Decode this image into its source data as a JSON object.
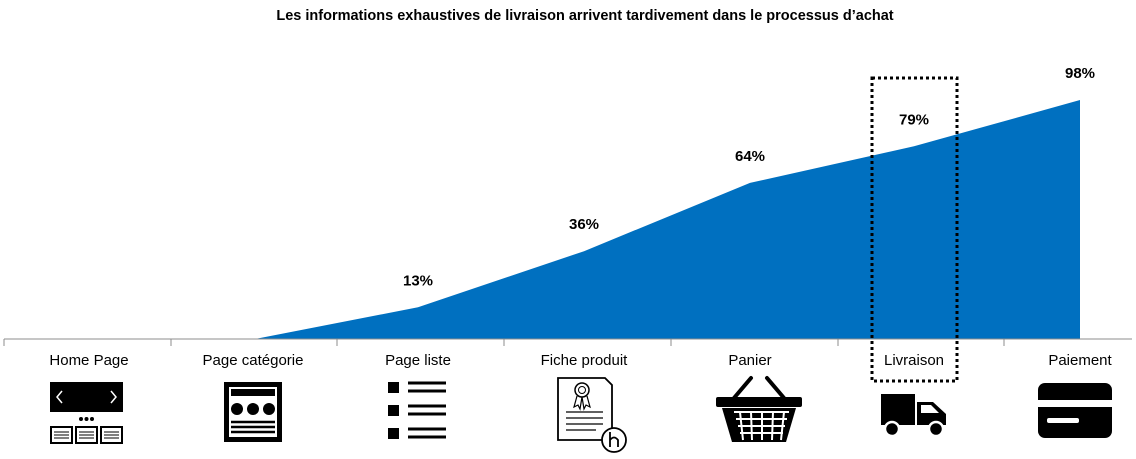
{
  "chart_data": {
    "type": "area",
    "title": "Les informations exhaustives de livraison arrivent tardivement dans le processus d’achat",
    "categories": [
      "Home Page",
      "Page catégorie",
      "Page liste",
      "Fiche produit",
      "Panier",
      "Livraison",
      "Paiement"
    ],
    "values": [
      0,
      0,
      13,
      36,
      64,
      79,
      98
    ],
    "value_labels": [
      "",
      "",
      "13%",
      "36%",
      "64%",
      "79%",
      "98%"
    ],
    "ylim": [
      0,
      100
    ],
    "grid": false,
    "highlighted_category": "Livraison",
    "area_color": "#0070C0"
  },
  "icons": [
    "browser-homepage-icon",
    "category-page-icon",
    "list-icon",
    "product-sheet-icon",
    "shopping-basket-icon",
    "delivery-truck-icon",
    "credit-card-icon"
  ]
}
